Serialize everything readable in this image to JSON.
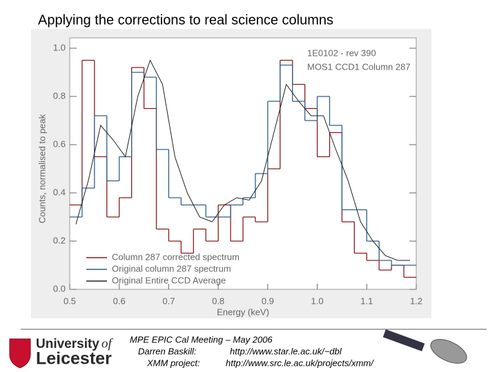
{
  "slide": {
    "title": "Applying the corrections to real science columns",
    "footer": {
      "meeting": "MPE EPIC Cal Meeting – May 2006",
      "author_label": "Darren Baskill:",
      "author_url": "http://www.star.le.ac.uk/~dbl",
      "project_label": "XMM project:",
      "project_url": "http://www.src.le.ac.uk/projects/xmm/"
    },
    "logo": {
      "line1": "University",
      "of": "of",
      "line2": "Leicester"
    }
  },
  "chart_data": {
    "type": "step",
    "x_label": "Energy (keV)",
    "y_label": "Counts, normalised to peak",
    "annotations": [
      "1E0102 - rev 390",
      "MOS1 CCD1 Column 287"
    ],
    "x": [
      0.5,
      0.525,
      0.55,
      0.575,
      0.6,
      0.625,
      0.65,
      0.675,
      0.7,
      0.725,
      0.75,
      0.775,
      0.8,
      0.825,
      0.85,
      0.875,
      0.9,
      0.925,
      0.95,
      0.975,
      1.0,
      1.025,
      1.05,
      1.075,
      1.1,
      1.125,
      1.15,
      1.175
    ],
    "bin_width": 0.025,
    "series": [
      {
        "name": "Column 287 corrected spectrum",
        "color": "#8b1a1a",
        "style": "step",
        "values": [
          0.35,
          0.95,
          0.55,
          0.3,
          0.38,
          0.92,
          0.75,
          0.25,
          0.2,
          0.15,
          0.25,
          0.2,
          0.35,
          0.2,
          0.3,
          0.28,
          0.5,
          0.95,
          0.85,
          0.75,
          0.55,
          0.65,
          0.28,
          0.15,
          0.12,
          0.08,
          0.1,
          0.05
        ]
      },
      {
        "name": "Original column 287 spectrum",
        "color": "#2f5f8a",
        "style": "step",
        "values": [
          0.3,
          0.42,
          0.72,
          0.45,
          0.55,
          0.9,
          0.88,
          0.58,
          0.38,
          0.35,
          0.35,
          0.3,
          0.3,
          0.35,
          0.38,
          0.48,
          0.78,
          0.93,
          0.78,
          0.7,
          0.8,
          0.68,
          0.33,
          0.33,
          0.2,
          0.12,
          0.1,
          0.1
        ]
      },
      {
        "name": "Original Entire CCD Average",
        "color": "#222222",
        "style": "line",
        "values": [
          0.27,
          0.45,
          0.68,
          0.62,
          0.55,
          0.8,
          0.95,
          0.85,
          0.55,
          0.4,
          0.3,
          0.28,
          0.35,
          0.38,
          0.37,
          0.45,
          0.65,
          0.85,
          0.78,
          0.72,
          0.72,
          0.58,
          0.45,
          0.28,
          0.2,
          0.14,
          0.12,
          0.12
        ]
      }
    ],
    "xlim": [
      0.5,
      1.2
    ],
    "ylim": [
      0,
      1.05
    ],
    "xticks": [
      0.5,
      0.6,
      0.7,
      0.8,
      0.9,
      {
        "value": 1,
        "label": "1.0"
      },
      1.1,
      1.2
    ],
    "yticks": [
      {
        "value": 0,
        "label": "0.0"
      },
      0.2,
      0.4,
      0.6,
      0.8,
      {
        "value": 1,
        "label": "1.0"
      }
    ],
    "legend": "lower-left"
  }
}
